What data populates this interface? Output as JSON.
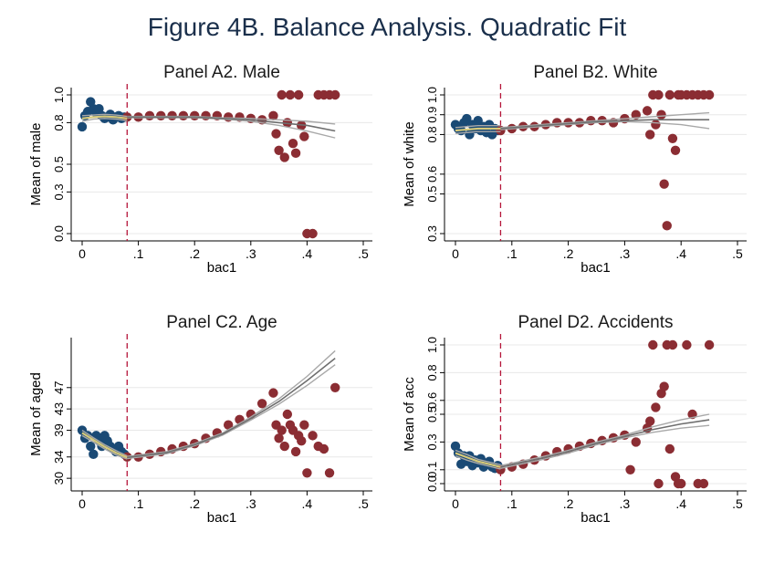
{
  "figure_title": "Figure 4B. Balance Analysis. Quadratic Fit",
  "chart_data": [
    {
      "type": "scatter",
      "title": "Panel A2. Male",
      "xlabel": "bac1",
      "ylabel": "Mean of male",
      "xlim": [
        0,
        0.5
      ],
      "ylim": [
        0.0,
        1.0
      ],
      "x_ticks": [
        0,
        0.1,
        0.2,
        0.3,
        0.4,
        0.5
      ],
      "x_tick_labels": [
        "0",
        ".1",
        ".2",
        ".3",
        ".4",
        ".5"
      ],
      "y_ticks": [
        0.0,
        0.3,
        0.5,
        0.8,
        1.0
      ],
      "y_tick_labels": [
        "0.0",
        "0.3",
        "0.5",
        "0.8",
        "1.0"
      ],
      "cutoff": 0.08,
      "below": {
        "x": [
          0.0,
          0.005,
          0.01,
          0.015,
          0.02,
          0.025,
          0.03,
          0.035,
          0.04,
          0.045,
          0.05,
          0.055,
          0.06,
          0.065,
          0.07,
          0.075
        ],
        "y": [
          0.77,
          0.85,
          0.88,
          0.95,
          0.9,
          0.87,
          0.9,
          0.85,
          0.83,
          0.84,
          0.86,
          0.82,
          0.84,
          0.85,
          0.83,
          0.84
        ]
      },
      "above": {
        "x": [
          0.08,
          0.1,
          0.12,
          0.14,
          0.16,
          0.18,
          0.2,
          0.22,
          0.24,
          0.26,
          0.28,
          0.3,
          0.32,
          0.34,
          0.345,
          0.35,
          0.355,
          0.36,
          0.365,
          0.37,
          0.375,
          0.38,
          0.385,
          0.39,
          0.395,
          0.4,
          0.41,
          0.42,
          0.43,
          0.44,
          0.45
        ],
        "y": [
          0.84,
          0.84,
          0.85,
          0.85,
          0.85,
          0.85,
          0.85,
          0.85,
          0.85,
          0.84,
          0.84,
          0.83,
          0.82,
          0.85,
          0.72,
          0.6,
          1.0,
          0.55,
          0.8,
          1.0,
          0.65,
          0.58,
          1.0,
          0.78,
          0.7,
          0.0,
          0.0,
          1.0,
          1.0,
          1.0,
          1.0
        ]
      },
      "fit_below": {
        "x": [
          0.0,
          0.02,
          0.04,
          0.06,
          0.08
        ],
        "y": [
          0.83,
          0.84,
          0.845,
          0.84,
          0.83
        ],
        "ci_lo": [
          0.81,
          0.825,
          0.83,
          0.825,
          0.815
        ],
        "ci_hi": [
          0.85,
          0.855,
          0.86,
          0.855,
          0.845
        ]
      },
      "fit_above": {
        "x": [
          0.08,
          0.15,
          0.2,
          0.25,
          0.3,
          0.35,
          0.4,
          0.45
        ],
        "y": [
          0.84,
          0.84,
          0.84,
          0.83,
          0.82,
          0.8,
          0.78,
          0.74
        ],
        "ci_lo": [
          0.835,
          0.835,
          0.835,
          0.825,
          0.81,
          0.78,
          0.74,
          0.69
        ],
        "ci_hi": [
          0.845,
          0.845,
          0.845,
          0.835,
          0.83,
          0.82,
          0.81,
          0.79
        ]
      }
    },
    {
      "type": "scatter",
      "title": "Panel B2. White",
      "xlabel": "bac1",
      "ylabel": "Mean of white",
      "xlim": [
        0,
        0.5
      ],
      "ylim": [
        0.3,
        1.0
      ],
      "x_ticks": [
        0,
        0.1,
        0.2,
        0.3,
        0.4,
        0.5
      ],
      "x_tick_labels": [
        "0",
        ".1",
        ".2",
        ".3",
        ".4",
        ".5"
      ],
      "y_ticks": [
        0.3,
        0.5,
        0.6,
        0.8,
        0.9,
        1.0
      ],
      "y_tick_labels": [
        "0.3",
        "0.5",
        "0.6",
        "0.8",
        "0.9",
        "1.0"
      ],
      "cutoff": 0.08,
      "below": {
        "x": [
          0.0,
          0.005,
          0.01,
          0.015,
          0.02,
          0.025,
          0.03,
          0.035,
          0.04,
          0.045,
          0.05,
          0.055,
          0.06,
          0.065,
          0.07,
          0.075
        ],
        "y": [
          0.85,
          0.83,
          0.82,
          0.86,
          0.88,
          0.8,
          0.85,
          0.83,
          0.87,
          0.82,
          0.84,
          0.81,
          0.85,
          0.8,
          0.83,
          0.82
        ]
      },
      "above": {
        "x": [
          0.08,
          0.1,
          0.12,
          0.14,
          0.16,
          0.18,
          0.2,
          0.22,
          0.24,
          0.26,
          0.28,
          0.3,
          0.32,
          0.34,
          0.345,
          0.35,
          0.355,
          0.36,
          0.365,
          0.37,
          0.375,
          0.38,
          0.385,
          0.39,
          0.395,
          0.4,
          0.41,
          0.42,
          0.43,
          0.44,
          0.45
        ],
        "y": [
          0.82,
          0.83,
          0.84,
          0.84,
          0.85,
          0.86,
          0.86,
          0.86,
          0.87,
          0.87,
          0.86,
          0.88,
          0.9,
          0.92,
          0.8,
          1.0,
          0.85,
          1.0,
          0.9,
          0.55,
          0.34,
          1.0,
          0.78,
          0.72,
          1.0,
          1.0,
          1.0,
          1.0,
          1.0,
          1.0,
          1.0
        ]
      },
      "fit_below": {
        "x": [
          0.0,
          0.02,
          0.04,
          0.06,
          0.08
        ],
        "y": [
          0.82,
          0.825,
          0.83,
          0.83,
          0.83
        ],
        "ci_lo": [
          0.805,
          0.81,
          0.815,
          0.815,
          0.815
        ],
        "ci_hi": [
          0.835,
          0.84,
          0.845,
          0.845,
          0.845
        ]
      },
      "fit_above": {
        "x": [
          0.08,
          0.15,
          0.2,
          0.25,
          0.3,
          0.35,
          0.4,
          0.45
        ],
        "y": [
          0.83,
          0.845,
          0.855,
          0.865,
          0.87,
          0.875,
          0.875,
          0.875
        ],
        "ci_lo": [
          0.825,
          0.84,
          0.85,
          0.86,
          0.865,
          0.86,
          0.85,
          0.83
        ],
        "ci_hi": [
          0.835,
          0.85,
          0.86,
          0.87,
          0.88,
          0.89,
          0.9,
          0.91
        ]
      }
    },
    {
      "type": "scatter",
      "title": "Panel C2. Age",
      "xlabel": "bac1",
      "ylabel": "Mean of aged",
      "xlim": [
        0,
        0.5
      ],
      "ylim": [
        29,
        55
      ],
      "x_ticks": [
        0,
        0.1,
        0.2,
        0.3,
        0.4,
        0.5
      ],
      "x_tick_labels": [
        "0",
        ".1",
        ".2",
        ".3",
        ".4",
        ".5"
      ],
      "y_ticks": [
        30,
        34,
        39,
        43,
        47
      ],
      "y_tick_labels": [
        "30",
        "34",
        "39",
        "43",
        "47"
      ],
      "cutoff": 0.08,
      "below": {
        "x": [
          0.0,
          0.005,
          0.01,
          0.015,
          0.02,
          0.025,
          0.03,
          0.035,
          0.04,
          0.045,
          0.05,
          0.055,
          0.06,
          0.065,
          0.07,
          0.075
        ],
        "y": [
          39,
          37.5,
          38,
          36,
          34.5,
          38,
          37,
          36,
          38,
          37,
          36,
          35.5,
          35,
          36,
          35,
          34.5
        ]
      },
      "above": {
        "x": [
          0.08,
          0.1,
          0.12,
          0.14,
          0.16,
          0.18,
          0.2,
          0.22,
          0.24,
          0.26,
          0.28,
          0.3,
          0.32,
          0.34,
          0.345,
          0.35,
          0.355,
          0.36,
          0.365,
          0.37,
          0.375,
          0.38,
          0.385,
          0.39,
          0.395,
          0.4,
          0.41,
          0.42,
          0.43,
          0.44,
          0.45
        ],
        "y": [
          34,
          34,
          34.5,
          35,
          35.5,
          36,
          36.5,
          37.5,
          38.5,
          40,
          41,
          42,
          44,
          46,
          40,
          37.5,
          39,
          36,
          42,
          40,
          39,
          35,
          38,
          37,
          40,
          31,
          38,
          36,
          35.5,
          31,
          47
        ]
      },
      "fit_below": {
        "x": [
          0.0,
          0.02,
          0.04,
          0.06,
          0.08
        ],
        "y": [
          38.5,
          37.2,
          35.9,
          34.8,
          33.9
        ],
        "ci_lo": [
          38.0,
          36.8,
          35.5,
          34.4,
          33.6
        ],
        "ci_hi": [
          39.0,
          37.6,
          36.3,
          35.2,
          34.2
        ]
      },
      "fit_above": {
        "x": [
          0.08,
          0.15,
          0.2,
          0.25,
          0.3,
          0.35,
          0.4,
          0.45
        ],
        "y": [
          33.9,
          34.8,
          36.3,
          38.3,
          41.2,
          44.4,
          48.3,
          52.5
        ],
        "ci_lo": [
          33.7,
          34.6,
          36.1,
          38.1,
          40.9,
          43.9,
          47.4,
          51.3
        ],
        "ci_hi": [
          34.1,
          35.0,
          36.5,
          38.5,
          41.5,
          44.9,
          49.1,
          53.9
        ]
      }
    },
    {
      "type": "scatter",
      "title": "Panel D2. Accidents",
      "xlabel": "bac1",
      "ylabel": "Mean of acc",
      "xlim": [
        0,
        0.5
      ],
      "ylim": [
        0.0,
        1.0
      ],
      "x_ticks": [
        0,
        0.1,
        0.2,
        0.3,
        0.4,
        0.5
      ],
      "x_tick_labels": [
        "0",
        ".1",
        ".2",
        ".3",
        ".4",
        ".5"
      ],
      "y_ticks": [
        0.0,
        0.1,
        0.3,
        0.5,
        0.6,
        0.8,
        1.0
      ],
      "y_tick_labels": [
        "0.0",
        "0.1",
        "0.3",
        "0.5",
        "0.6",
        "0.8",
        "1.0"
      ],
      "cutoff": 0.08,
      "below": {
        "x": [
          0.0,
          0.005,
          0.01,
          0.015,
          0.02,
          0.025,
          0.03,
          0.035,
          0.04,
          0.045,
          0.05,
          0.055,
          0.06,
          0.065,
          0.07,
          0.075
        ],
        "y": [
          0.27,
          0.22,
          0.14,
          0.2,
          0.16,
          0.2,
          0.13,
          0.17,
          0.15,
          0.18,
          0.12,
          0.14,
          0.16,
          0.12,
          0.11,
          0.13
        ]
      },
      "above": {
        "x": [
          0.08,
          0.1,
          0.12,
          0.14,
          0.16,
          0.18,
          0.2,
          0.22,
          0.24,
          0.26,
          0.28,
          0.3,
          0.31,
          0.32,
          0.34,
          0.345,
          0.35,
          0.355,
          0.36,
          0.365,
          0.37,
          0.375,
          0.38,
          0.385,
          0.39,
          0.395,
          0.4,
          0.41,
          0.42,
          0.43,
          0.44,
          0.45
        ],
        "y": [
          0.1,
          0.12,
          0.14,
          0.17,
          0.2,
          0.23,
          0.25,
          0.27,
          0.29,
          0.31,
          0.33,
          0.35,
          0.1,
          0.3,
          0.4,
          0.45,
          1.0,
          0.55,
          0.0,
          0.65,
          0.7,
          1.0,
          0.25,
          1.0,
          0.05,
          0.0,
          0.0,
          1.0,
          0.5,
          0.0,
          0.0,
          1.0
        ]
      },
      "fit_below": {
        "x": [
          0.0,
          0.02,
          0.04,
          0.06,
          0.08
        ],
        "y": [
          0.22,
          0.19,
          0.16,
          0.14,
          0.12
        ],
        "ci_lo": [
          0.2,
          0.17,
          0.145,
          0.125,
          0.105
        ],
        "ci_hi": [
          0.24,
          0.21,
          0.175,
          0.155,
          0.135
        ]
      },
      "fit_above": {
        "x": [
          0.08,
          0.15,
          0.2,
          0.25,
          0.3,
          0.35,
          0.4,
          0.45
        ],
        "y": [
          0.12,
          0.18,
          0.23,
          0.29,
          0.34,
          0.39,
          0.43,
          0.46
        ],
        "ci_lo": [
          0.11,
          0.17,
          0.22,
          0.28,
          0.33,
          0.37,
          0.4,
          0.42
        ],
        "ci_hi": [
          0.13,
          0.19,
          0.24,
          0.3,
          0.35,
          0.41,
          0.46,
          0.5
        ]
      }
    }
  ]
}
